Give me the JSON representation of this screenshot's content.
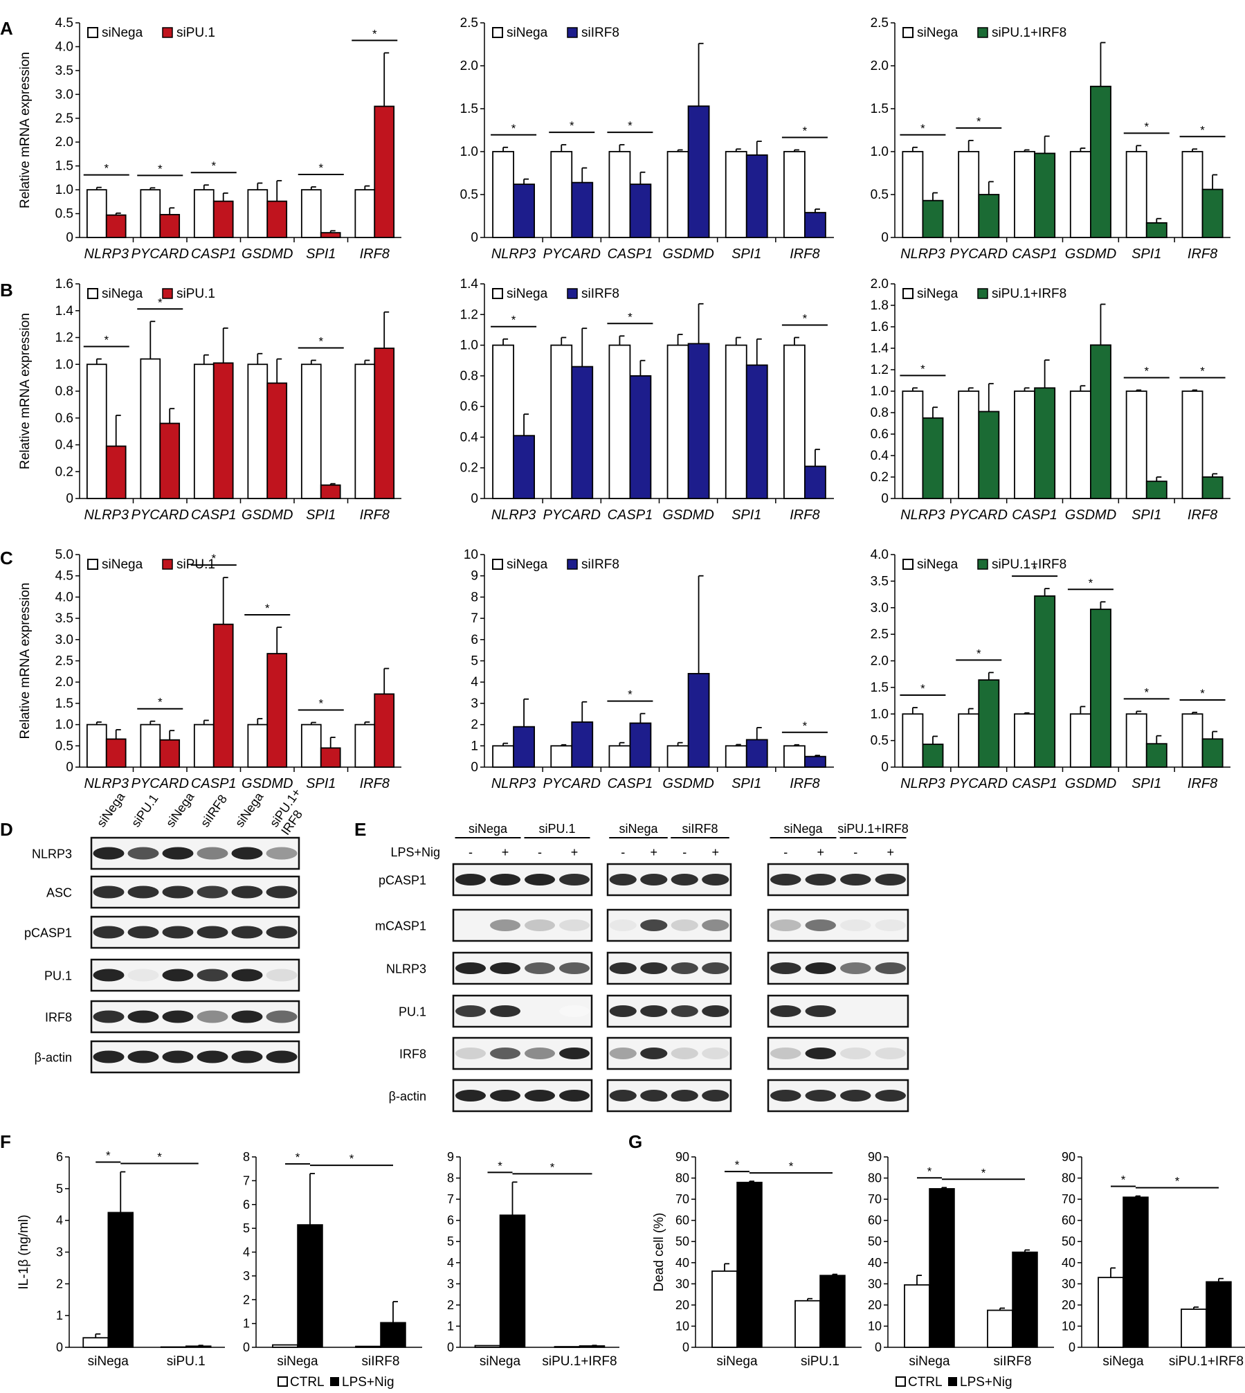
{
  "panel_letters": [
    "A",
    "B",
    "C",
    "D",
    "E",
    "F",
    "G"
  ],
  "colors": {
    "siPU.1": "#c0141e",
    "siIRF8": "#1d1d8c",
    "siPU.1+IRF8": "#1b6b34",
    "siNega": "#ffffff",
    "CTRL": "#ffffff",
    "LPS+Nig": "#000000"
  },
  "qpcr_ylabel": "Relative mRNA expression",
  "blot_D": {
    "columns": [
      "siNega",
      "siPU.1",
      "siNega",
      "siIRF8",
      "siNega",
      "siPU.1+\nIRF8"
    ],
    "rows": [
      "NLRP3",
      "ASC",
      "pCASP1",
      "PU.1",
      "IRF8",
      "β-actin"
    ]
  },
  "blot_E": {
    "treatment_label": "LPS+Nig",
    "signs": [
      "-",
      "+",
      "-",
      "+"
    ],
    "groups": [
      [
        "siNega",
        "siPU.1"
      ],
      [
        "siNega",
        "siIRF8"
      ],
      [
        "siNega",
        "siPU.1+IRF8"
      ]
    ],
    "rows": [
      "pCASP1",
      "mCASP1",
      "NLRP3",
      "PU.1",
      "IRF8",
      "β-actin"
    ]
  },
  "legend_FG": [
    "CTRL",
    "LPS+Nig"
  ],
  "chart_data": [
    {
      "id": "A1",
      "type": "bar",
      "categories": [
        "NLRP3",
        "PYCARD",
        "CASP1",
        "GSDMD",
        "SPI1",
        "IRF8"
      ],
      "ylabel": "Relative mRNA expression",
      "ylim": [
        0,
        4.5
      ],
      "yticks": [
        "0",
        "0.5",
        "1.0",
        "1.5",
        "2.0",
        "2.5",
        "3.0",
        "3.5",
        "4.0",
        "4.5"
      ],
      "series": [
        {
          "name": "siNega",
          "values": [
            1.0,
            1.0,
            1.0,
            1.0,
            1.0,
            1.0
          ],
          "errors": [
            0.05,
            0.04,
            0.1,
            0.14,
            0.06,
            0.08
          ]
        },
        {
          "name": "siPU.1",
          "values": [
            0.47,
            0.48,
            0.76,
            0.76,
            0.1,
            2.75
          ],
          "errors": [
            0.04,
            0.14,
            0.17,
            0.43,
            0.04,
            1.12
          ]
        }
      ],
      "significant": [
        0,
        1,
        2,
        4,
        5
      ]
    },
    {
      "id": "A2",
      "type": "bar",
      "categories": [
        "NLRP3",
        "PYCARD",
        "CASP1",
        "GSDMD",
        "SPI1",
        "IRF8"
      ],
      "ylim": [
        0,
        2.5
      ],
      "yticks": [
        "0",
        "0.5",
        "1.0",
        "1.5",
        "2.0",
        "2.5"
      ],
      "series": [
        {
          "name": "siNega",
          "values": [
            1.0,
            1.0,
            1.0,
            1.0,
            1.0,
            1.0
          ],
          "errors": [
            0.05,
            0.08,
            0.08,
            0.02,
            0.03,
            0.02
          ]
        },
        {
          "name": "siIRF8",
          "values": [
            0.62,
            0.64,
            0.62,
            1.53,
            0.96,
            0.29
          ],
          "errors": [
            0.06,
            0.17,
            0.14,
            0.73,
            0.16,
            0.04
          ]
        }
      ],
      "significant": [
        0,
        1,
        2,
        5
      ]
    },
    {
      "id": "A3",
      "type": "bar",
      "categories": [
        "NLRP3",
        "PYCARD",
        "CASP1",
        "GSDMD",
        "SPI1",
        "IRF8"
      ],
      "ylim": [
        0,
        2.5
      ],
      "yticks": [
        "0",
        "0.5",
        "1.0",
        "1.5",
        "2.0",
        "2.5"
      ],
      "series": [
        {
          "name": "siNega",
          "values": [
            1.0,
            1.0,
            1.0,
            1.0,
            1.0,
            1.0
          ],
          "errors": [
            0.05,
            0.13,
            0.02,
            0.04,
            0.07,
            0.03
          ]
        },
        {
          "name": "siPU.1+IRF8",
          "values": [
            0.43,
            0.5,
            0.98,
            1.76,
            0.17,
            0.56
          ],
          "errors": [
            0.09,
            0.15,
            0.2,
            0.51,
            0.05,
            0.17
          ]
        }
      ],
      "significant": [
        0,
        1,
        4,
        5
      ]
    },
    {
      "id": "B1",
      "type": "bar",
      "categories": [
        "NLRP3",
        "PYCARD",
        "CASP1",
        "GSDMD",
        "SPI1",
        "IRF8"
      ],
      "ylabel": "Relative mRNA expression",
      "ylim": [
        0,
        1.6
      ],
      "yticks": [
        "0",
        "0.2",
        "0.4",
        "0.6",
        "0.8",
        "1.0",
        "1.2",
        "1.4",
        "1.6"
      ],
      "series": [
        {
          "name": "siNega",
          "values": [
            1.0,
            1.04,
            1.0,
            1.0,
            1.0,
            1.0
          ],
          "errors": [
            0.04,
            0.28,
            0.07,
            0.08,
            0.03,
            0.03
          ]
        },
        {
          "name": "siPU.1",
          "values": [
            0.39,
            0.56,
            1.01,
            0.86,
            0.1,
            1.12
          ],
          "errors": [
            0.23,
            0.11,
            0.26,
            0.18,
            0.01,
            0.27
          ]
        }
      ],
      "significant": [
        0,
        1,
        4
      ]
    },
    {
      "id": "B2",
      "type": "bar",
      "categories": [
        "NLRP3",
        "PYCARD",
        "CASP1",
        "GSDMD",
        "SPI1",
        "IRF8"
      ],
      "ylim": [
        0,
        1.4
      ],
      "yticks": [
        "0",
        "0.2",
        "0.4",
        "0.6",
        "0.8",
        "1.0",
        "1.2",
        "1.4"
      ],
      "series": [
        {
          "name": "siNega",
          "values": [
            1.0,
            1.0,
            1.0,
            1.0,
            1.0,
            1.0
          ],
          "errors": [
            0.04,
            0.05,
            0.06,
            0.07,
            0.05,
            0.05
          ]
        },
        {
          "name": "siIRF8",
          "values": [
            0.41,
            0.86,
            0.8,
            1.01,
            0.87,
            0.21
          ],
          "errors": [
            0.14,
            0.25,
            0.1,
            0.26,
            0.17,
            0.11
          ]
        }
      ],
      "significant": [
        0,
        2,
        5
      ]
    },
    {
      "id": "B3",
      "type": "bar",
      "categories": [
        "NLRP3",
        "PYCARD",
        "CASP1",
        "GSDMD",
        "SPI1",
        "IRF8"
      ],
      "ylim": [
        0,
        2.0
      ],
      "yticks": [
        "0",
        "0.2",
        "0.4",
        "0.6",
        "0.8",
        "1.0",
        "1.2",
        "1.4",
        "1.6",
        "1.8",
        "2.0"
      ],
      "series": [
        {
          "name": "siNega",
          "values": [
            1.0,
            1.0,
            1.0,
            1.0,
            1.0,
            1.0
          ],
          "errors": [
            0.03,
            0.03,
            0.03,
            0.05,
            0.01,
            0.01
          ]
        },
        {
          "name": "siPU.1+IRF8",
          "values": [
            0.75,
            0.81,
            1.03,
            1.43,
            0.16,
            0.2
          ],
          "errors": [
            0.1,
            0.26,
            0.26,
            0.38,
            0.04,
            0.03
          ]
        }
      ],
      "significant": [
        0,
        4,
        5
      ]
    },
    {
      "id": "C1",
      "type": "bar",
      "categories": [
        "NLRP3",
        "PYCARD",
        "CASP1",
        "GSDMD",
        "SPI1",
        "IRF8"
      ],
      "ylabel": "Relative mRNA expression",
      "ylim": [
        0,
        5.0
      ],
      "yticks": [
        "0",
        "0.5",
        "1.0",
        "1.5",
        "2.0",
        "2.5",
        "3.0",
        "3.5",
        "4.0",
        "4.5",
        "5.0"
      ],
      "series": [
        {
          "name": "siNega",
          "values": [
            1.0,
            1.0,
            1.0,
            1.0,
            1.0,
            1.0
          ],
          "errors": [
            0.06,
            0.08,
            0.1,
            0.14,
            0.05,
            0.06
          ]
        },
        {
          "name": "siPU.1",
          "values": [
            0.66,
            0.64,
            3.36,
            2.67,
            0.45,
            1.72
          ],
          "errors": [
            0.22,
            0.22,
            1.1,
            0.62,
            0.25,
            0.6
          ]
        }
      ],
      "significant": [
        1,
        2,
        3,
        4
      ]
    },
    {
      "id": "C2",
      "type": "bar",
      "categories": [
        "NLRP3",
        "PYCARD",
        "CASP1",
        "GSDMD",
        "SPI1",
        "IRF8"
      ],
      "ylim": [
        0,
        10
      ],
      "yticks": [
        "0",
        "1",
        "2",
        "3",
        "4",
        "5",
        "6",
        "7",
        "8",
        "9",
        "10"
      ],
      "series": [
        {
          "name": "siNega",
          "values": [
            1.0,
            1.0,
            1.0,
            1.0,
            1.0,
            1.0
          ],
          "errors": [
            0.12,
            0.05,
            0.15,
            0.15,
            0.06,
            0.05
          ]
        },
        {
          "name": "siIRF8",
          "values": [
            1.9,
            2.12,
            2.07,
            4.4,
            1.29,
            0.5
          ],
          "errors": [
            1.3,
            0.95,
            0.45,
            4.6,
            0.57,
            0.05
          ]
        }
      ],
      "significant": [
        2,
        5
      ]
    },
    {
      "id": "C3",
      "type": "bar",
      "categories": [
        "NLRP3",
        "PYCARD",
        "CASP1",
        "GSDMD",
        "SPI1",
        "IRF8"
      ],
      "ylim": [
        0,
        4.0
      ],
      "yticks": [
        "0",
        "0.5",
        "1.0",
        "1.5",
        "2.0",
        "2.5",
        "3.0",
        "3.5",
        "4.0"
      ],
      "series": [
        {
          "name": "siNega",
          "values": [
            1.0,
            1.0,
            1.0,
            1.0,
            1.0,
            1.0
          ],
          "errors": [
            0.12,
            0.1,
            0.02,
            0.14,
            0.05,
            0.03
          ]
        },
        {
          "name": "siPU.1+IRF8",
          "values": [
            0.43,
            1.64,
            3.22,
            2.97,
            0.44,
            0.53
          ],
          "errors": [
            0.15,
            0.14,
            0.14,
            0.14,
            0.15,
            0.14
          ]
        }
      ],
      "significant": [
        0,
        1,
        2,
        3,
        4,
        5
      ]
    },
    {
      "id": "F1",
      "type": "bar",
      "categories": [
        "siNega",
        "siPU.1"
      ],
      "ylabel": "IL-1β (ng/ml)",
      "ylim": [
        0,
        6
      ],
      "yticks": [
        "0",
        "1",
        "2",
        "3",
        "4",
        "5",
        "6"
      ],
      "series": [
        {
          "name": "CTRL",
          "values": [
            0.3,
            0.01
          ],
          "errors": [
            0.12,
            0.0
          ]
        },
        {
          "name": "LPS+Nig",
          "values": [
            4.25,
            0.04
          ],
          "errors": [
            1.28,
            0.02
          ]
        }
      ]
    },
    {
      "id": "F2",
      "type": "bar",
      "categories": [
        "siNega",
        "siIRF8"
      ],
      "ylim": [
        0,
        8
      ],
      "yticks": [
        "0",
        "1",
        "2",
        "3",
        "4",
        "5",
        "6",
        "7",
        "8"
      ],
      "series": [
        {
          "name": "CTRL",
          "values": [
            0.1,
            0.04
          ],
          "errors": [
            0.0,
            0.0
          ]
        },
        {
          "name": "LPS+Nig",
          "values": [
            5.15,
            1.04
          ],
          "errors": [
            2.15,
            0.88
          ]
        }
      ]
    },
    {
      "id": "F3",
      "type": "bar",
      "categories": [
        "siNega",
        "siPU.1+IRF8"
      ],
      "ylim": [
        0,
        9
      ],
      "yticks": [
        "0",
        "1",
        "2",
        "3",
        "4",
        "5",
        "6",
        "7",
        "8",
        "9"
      ],
      "series": [
        {
          "name": "CTRL",
          "values": [
            0.08,
            0.03
          ],
          "errors": [
            0.0,
            0.0
          ]
        },
        {
          "name": "LPS+Nig",
          "values": [
            6.25,
            0.07
          ],
          "errors": [
            1.56,
            0.02
          ]
        }
      ]
    },
    {
      "id": "G1",
      "type": "bar",
      "categories": [
        "siNega",
        "siPU.1"
      ],
      "ylabel": "Dead cell (%)",
      "ylim": [
        0,
        90
      ],
      "yticks": [
        "0",
        "10",
        "20",
        "30",
        "40",
        "50",
        "60",
        "70",
        "80",
        "90"
      ],
      "series": [
        {
          "name": "CTRL",
          "values": [
            36,
            22
          ],
          "errors": [
            3.5,
            1.0
          ]
        },
        {
          "name": "LPS+Nig",
          "values": [
            78,
            34
          ],
          "errors": [
            0.5,
            0.5
          ]
        }
      ]
    },
    {
      "id": "G2",
      "type": "bar",
      "categories": [
        "siNega",
        "siIRF8"
      ],
      "ylim": [
        0,
        90
      ],
      "yticks": [
        "0",
        "10",
        "20",
        "30",
        "40",
        "50",
        "60",
        "70",
        "80",
        "90"
      ],
      "series": [
        {
          "name": "CTRL",
          "values": [
            29.5,
            17.5
          ],
          "errors": [
            4.5,
            1.0
          ]
        },
        {
          "name": "LPS+Nig",
          "values": [
            75,
            45
          ],
          "errors": [
            0.5,
            1.0
          ]
        }
      ]
    },
    {
      "id": "G3",
      "type": "bar",
      "categories": [
        "siNega",
        "siPU.1+IRF8"
      ],
      "ylim": [
        0,
        90
      ],
      "yticks": [
        "0",
        "10",
        "20",
        "30",
        "40",
        "50",
        "60",
        "70",
        "80",
        "90"
      ],
      "series": [
        {
          "name": "CTRL",
          "values": [
            33,
            18
          ],
          "errors": [
            4.5,
            1.0
          ]
        },
        {
          "name": "LPS+Nig",
          "values": [
            71,
            31
          ],
          "errors": [
            0.5,
            1.5
          ]
        }
      ]
    }
  ]
}
